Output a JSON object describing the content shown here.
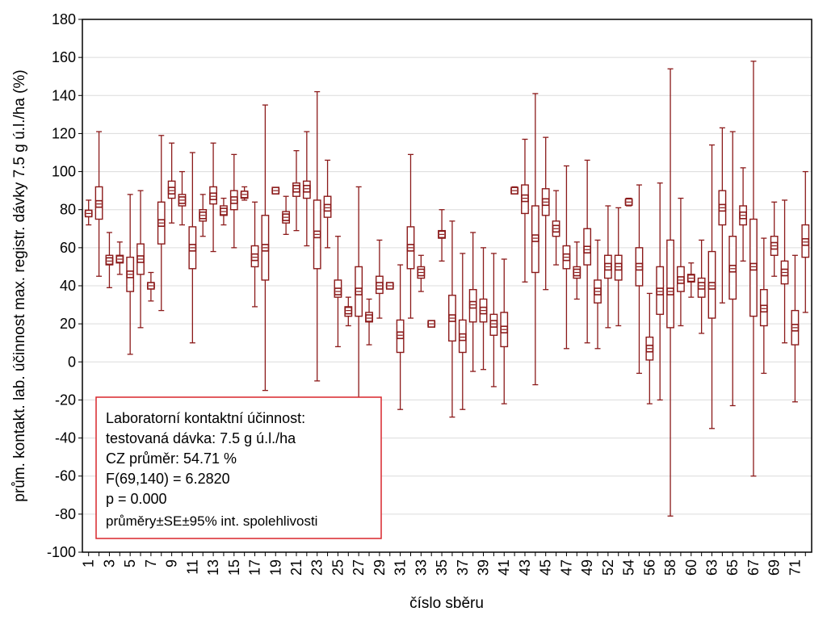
{
  "chart_data": {
    "type": "boxplot",
    "title": "",
    "xlabel": "číslo sběru",
    "ylabel": "prům. kontakt. lab. účinnost max. registr. dávky 7.5 g ú.l./ha (%)",
    "ylim": [
      -100,
      180
    ],
    "yticks": [
      180,
      160,
      140,
      120,
      100,
      80,
      60,
      40,
      20,
      0,
      -20,
      -40,
      -60,
      -80,
      -100
    ],
    "grid": true,
    "color": "#8b1a1a",
    "x_tick_labels": [
      "1",
      "3",
      "5",
      "7",
      "9",
      "11",
      "13",
      "15",
      "17",
      "19",
      "21",
      "23",
      "25",
      "27",
      "29",
      "31",
      "33",
      "35",
      "37",
      "39",
      "41",
      "43",
      "45",
      "47",
      "49",
      "52",
      "54",
      "56",
      "58",
      "60",
      "63",
      "65",
      "67",
      "69",
      "71"
    ],
    "legend_box": {
      "lines": [
        "Laboratorní kontaktní účinnost:",
        "testovaná dávka: 7.5 g ú.l./ha",
        "CZ průměr: 54.71 %",
        "F(69,140) = 6.2820",
        "p = 0.000",
        "průměry±SE±95% int. spolehlivosti"
      ],
      "placement": "bottom-left"
    },
    "series_note": "mean, mean±SE (box), mean±95% CI (whiskers)",
    "means": [
      78,
      83,
      53,
      54,
      46,
      54,
      40,
      73,
      90,
      85,
      60,
      77,
      87,
      79,
      85,
      88,
      55,
      60,
      90,
      76,
      91,
      91,
      67,
      81,
      37,
      27,
      37,
      23,
      40,
      40,
      14,
      60,
      47,
      20,
      67,
      23,
      13,
      30,
      27,
      20,
      17,
      90,
      86,
      65,
      84,
      70,
      55,
      47,
      59,
      37,
      50,
      50,
      84,
      50,
      7,
      37,
      37,
      43,
      44,
      40,
      40,
      81,
      49,
      77,
      50,
      28,
      61,
      47,
      18,
      63
    ],
    "se_low": [
      77,
      75,
      51,
      52,
      37,
      46,
      39,
      62,
      86,
      82,
      49,
      74,
      83,
      77,
      80,
      86,
      50,
      43,
      89,
      73,
      87,
      86,
      49,
      76,
      34,
      24,
      24,
      21,
      36,
      39,
      5,
      49,
      44,
      19,
      65,
      11,
      5,
      21,
      21,
      14,
      8,
      89,
      78,
      47,
      77,
      66,
      49,
      44,
      51,
      31,
      44,
      43,
      83,
      40,
      1,
      25,
      18,
      37,
      42,
      34,
      23,
      72,
      33,
      72,
      24,
      19,
      56,
      41,
      9,
      55
    ],
    "se_high": [
      79,
      92,
      56,
      56,
      55,
      62,
      41,
      84,
      95,
      88,
      71,
      80,
      92,
      82,
      90,
      89,
      61,
      77,
      91,
      79,
      94,
      95,
      85,
      87,
      43,
      29,
      50,
      26,
      45,
      41,
      22,
      71,
      50,
      21,
      69,
      35,
      22,
      38,
      33,
      25,
      26,
      91,
      93,
      82,
      91,
      74,
      61,
      50,
      70,
      43,
      56,
      56,
      85,
      60,
      13,
      50,
      64,
      50,
      46,
      44,
      58,
      90,
      66,
      82,
      75,
      38,
      66,
      53,
      27,
      72
    ],
    "ci_low": [
      72,
      45,
      39,
      46,
      4,
      18,
      32,
      27,
      73,
      72,
      10,
      66,
      58,
      72,
      60,
      85,
      29,
      -15,
      89,
      67,
      69,
      61,
      -10,
      60,
      8,
      19,
      -21,
      9,
      23,
      39,
      -25,
      23,
      37,
      19,
      53,
      -29,
      -25,
      -5,
      -4,
      -13,
      -22,
      89,
      42,
      -12,
      38,
      51,
      7,
      33,
      10,
      7,
      18,
      19,
      82,
      -6,
      -22,
      -20,
      -81,
      19,
      34,
      15,
      -35,
      31,
      -23,
      53,
      -60,
      -6,
      45,
      10,
      -21,
      26
    ],
    "ci_high": [
      85,
      121,
      68,
      63,
      88,
      90,
      47,
      119,
      115,
      100,
      110,
      88,
      115,
      86,
      109,
      92,
      84,
      135,
      91,
      87,
      111,
      121,
      142,
      106,
      66,
      34,
      92,
      33,
      64,
      41,
      51,
      109,
      56,
      21,
      80,
      74,
      57,
      68,
      60,
      57,
      54,
      92,
      117,
      141,
      118,
      90,
      103,
      63,
      106,
      64,
      82,
      81,
      86,
      93,
      36,
      94,
      154,
      86,
      52,
      64,
      114,
      123,
      121,
      102,
      158,
      65,
      84,
      85,
      56,
      100
    ]
  }
}
